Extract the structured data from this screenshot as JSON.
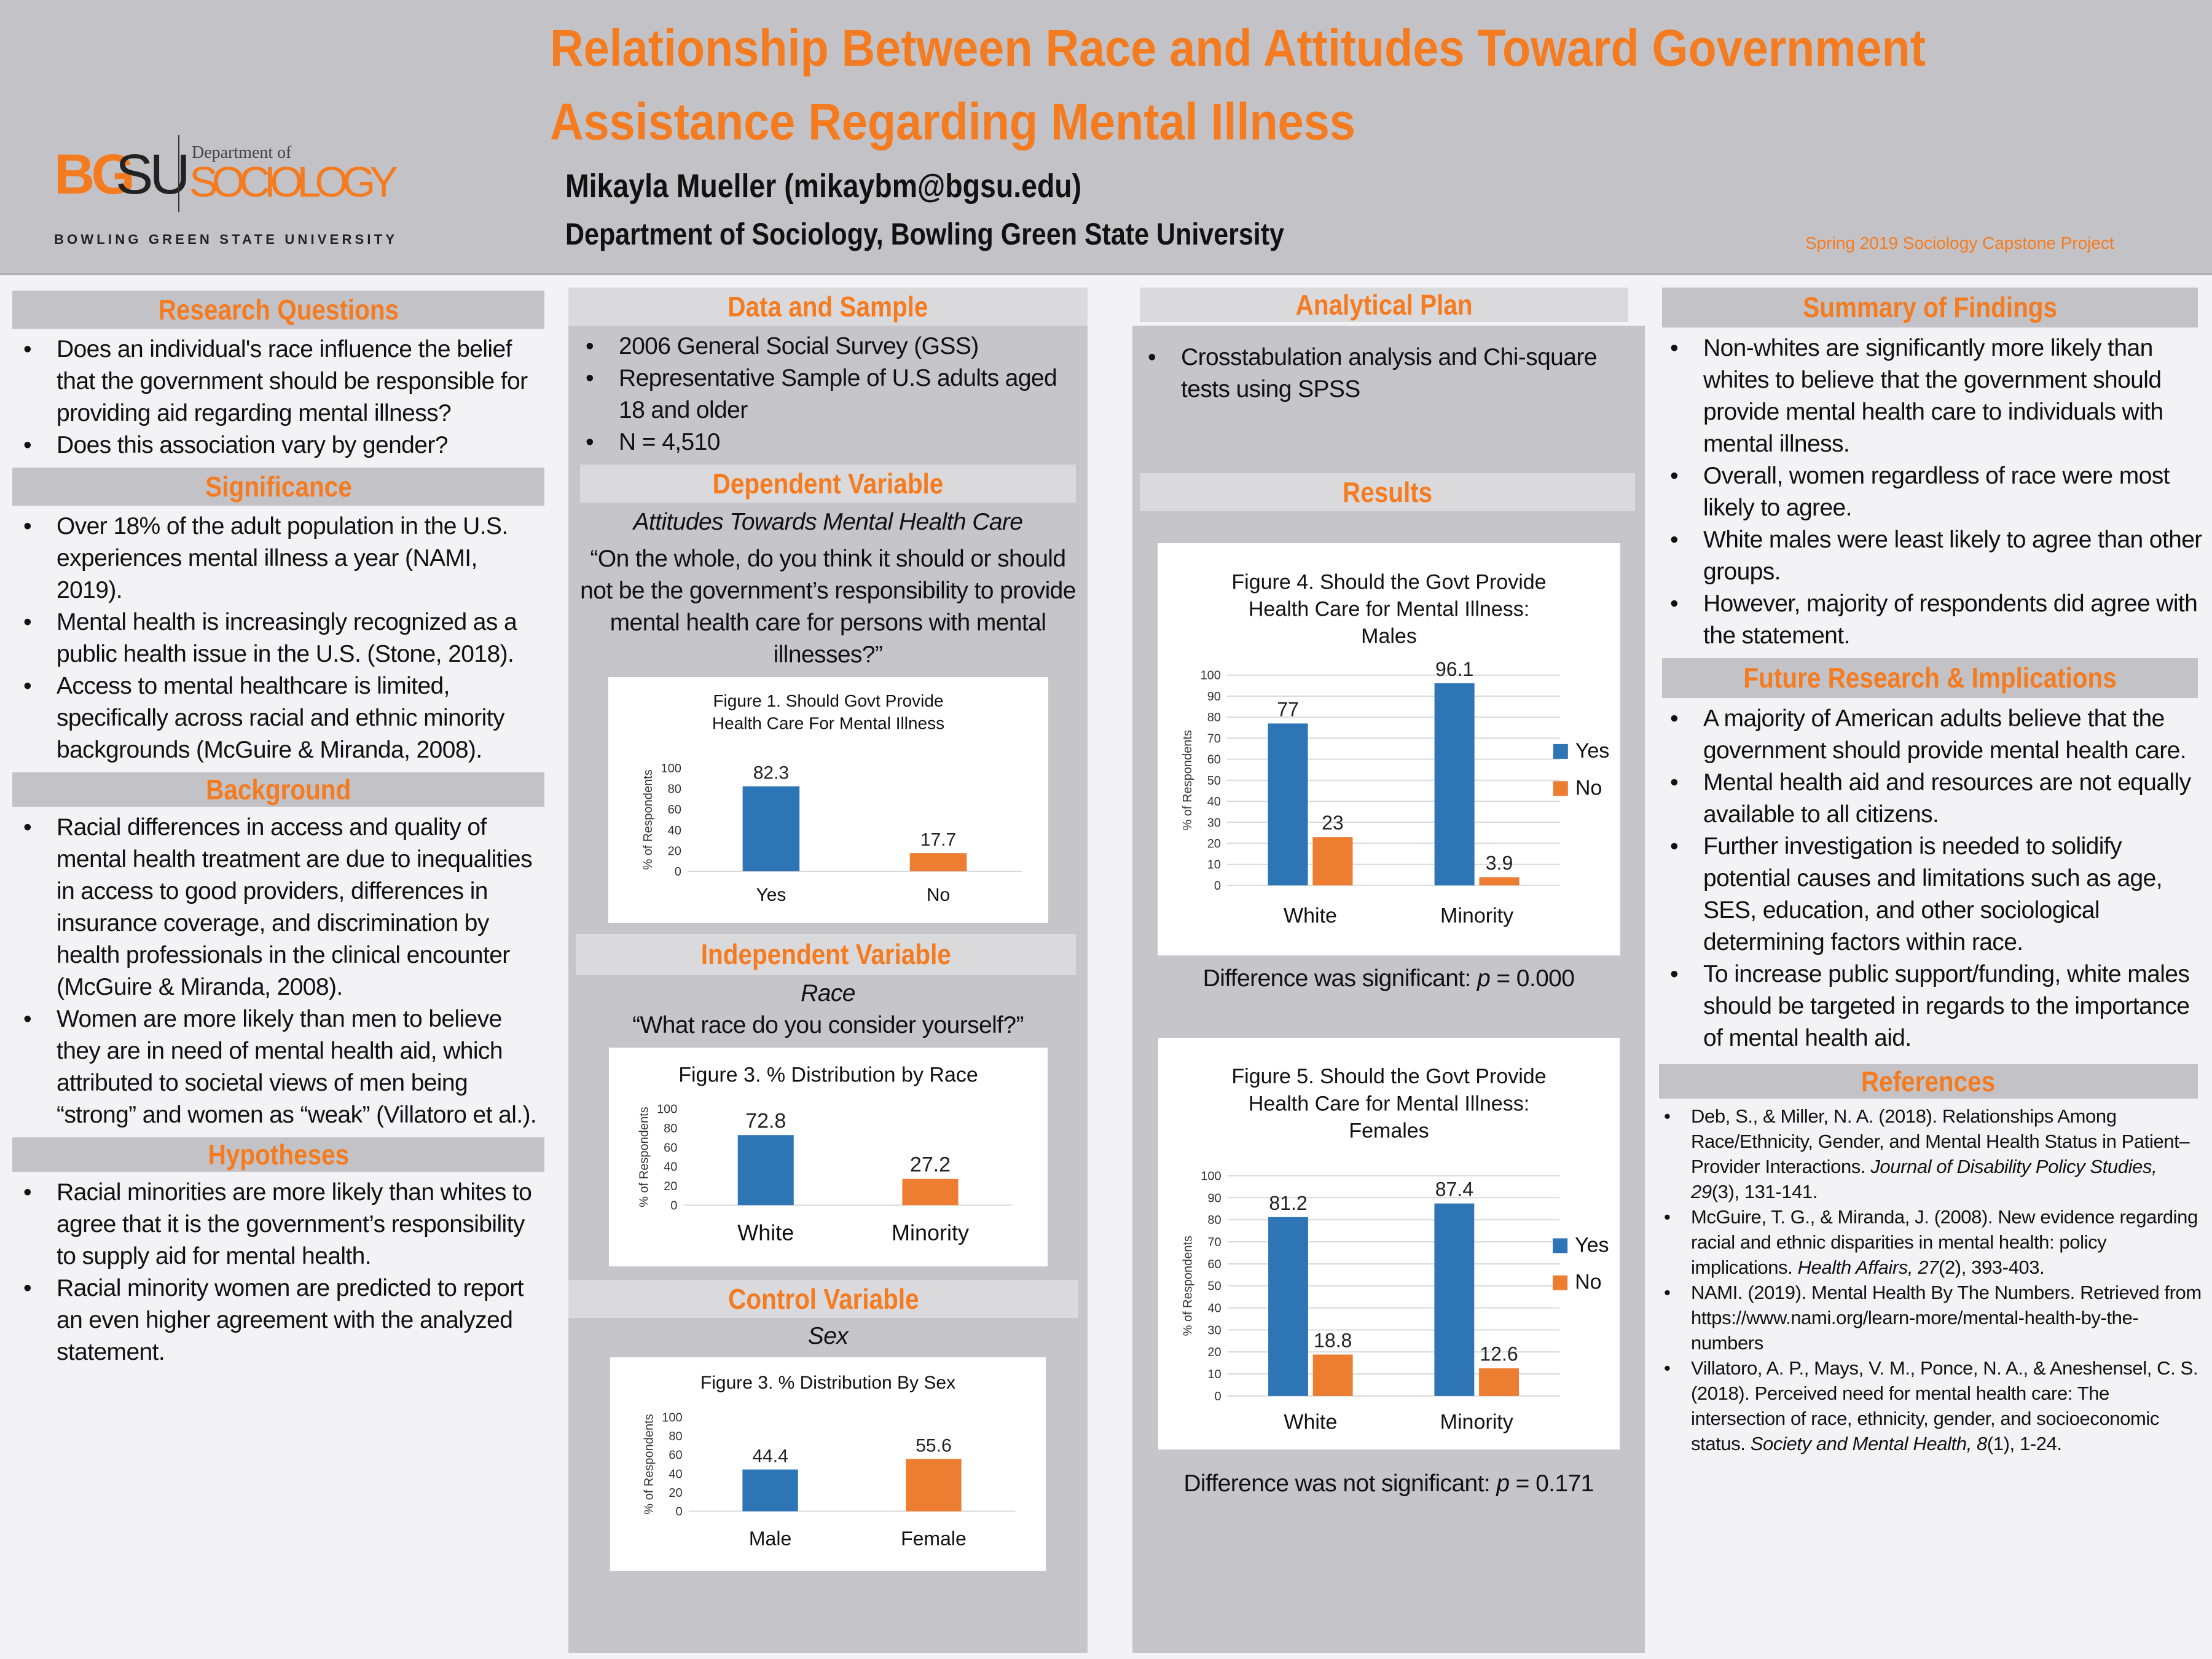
{
  "header": {
    "title_line1": "Relationship Between Race and Attitudes Toward Government",
    "title_line2": "Assistance  Regarding Mental Illness",
    "author": "Mikayla Mueller (mikaybm@bgsu.edu)",
    "department": "Department of Sociology, Bowling Green State University",
    "project": "Spring 2019 Sociology Capstone Project",
    "logo": {
      "bg": "BG",
      "su": "SU",
      "dept_of": "Department of",
      "sociology": "SOCIOLOGY",
      "university": "BOWLING GREEN STATE UNIVERSITY"
    }
  },
  "colors": {
    "orange": "#f47b20",
    "blue": "#2e75b6",
    "bar_orange": "#ed7d31",
    "panel": "#c6c6ca"
  },
  "research_questions": {
    "heading": "Research Questions",
    "items": [
      "Does an individual's race influence the belief that the government should be responsible for providing aid regarding mental illness?",
      "Does this association vary by gender?"
    ]
  },
  "significance": {
    "heading": "Significance",
    "items": [
      "Over 18% of the adult population in the U.S. experiences mental illness a year (NAMI, 2019).",
      "Mental health is increasingly recognized as a public health issue in the U.S. (Stone, 2018).",
      "Access to mental healthcare is limited, specifically across racial and ethnic minority backgrounds (McGuire & Miranda, 2008)."
    ]
  },
  "background": {
    "heading": "Background",
    "items": [
      "Racial differences in access and quality of mental health treatment are due to inequalities in access to good providers, differences in insurance coverage, and discrimination by health professionals in the clinical encounter (McGuire & Miranda, 2008).",
      "Women are more likely than men to believe they are in need of mental health aid, which attributed to societal views of men being “strong” and women as “weak” (Villatoro et al.)."
    ]
  },
  "hypotheses": {
    "heading": "Hypotheses",
    "items": [
      "Racial minorities are more likely than whites to agree that it is the government’s responsibility to supply aid for mental health.",
      "Racial minority women are predicted to report an even higher agreement with the analyzed statement."
    ]
  },
  "data_sample": {
    "heading": "Data and Sample",
    "items": [
      "2006 General Social Survey (GSS)",
      "Representative Sample of U.S adults aged 18 and older",
      "N = 4,510"
    ]
  },
  "dependent": {
    "heading": "Dependent Variable",
    "subtitle": "Attitudes Towards Mental Health Care",
    "question": "“On the whole, do you think it should or should not be the government’s responsibility to provide mental health care for persons with mental illnesses?”"
  },
  "independent": {
    "heading": "Independent Variable",
    "subtitle": "Race",
    "question": "“What race do you consider yourself?”"
  },
  "control": {
    "heading": "Control Variable",
    "subtitle": "Sex"
  },
  "analytical_plan": {
    "heading": "Analytical Plan",
    "items": [
      "Crosstabulation analysis and Chi-square tests using SPSS"
    ]
  },
  "results": {
    "heading": "Results",
    "fig4_note_prefix": "Difference was significant: ",
    "fig4_note_p": "p",
    "fig4_note_value": " = 0.000",
    "fig5_note_prefix": "Difference was not significant: ",
    "fig5_note_p": "p",
    "fig5_note_value": " = 0.171"
  },
  "summary": {
    "heading": "Summary of Findings",
    "items": [
      "Non-whites are significantly more likely than whites to believe that the government should provide mental health care to individuals with mental illness.",
      "Overall, women regardless of race were most likely to agree.",
      "White males were least likely to agree than other groups.",
      "However, majority of respondents did agree with the statement."
    ]
  },
  "future": {
    "heading": "Future Research & Implications",
    "items": [
      "A majority of American adults believe that the government should provide mental health care.",
      "Mental health aid and resources are not equally available to all citizens.",
      "Further investigation is needed to solidify potential causes and limitations such as age, SES, education, and other sociological determining factors within race.",
      "To increase public support/funding, white males should be targeted in regards to the importance of mental health aid."
    ]
  },
  "references": {
    "heading": "References",
    "items": [
      {
        "text": "Deb, S., & Miller, N. A. (2018). Relationships Among Race/Ethnicity, Gender, and Mental Health Status in Patient–Provider Interactions. ",
        "journal": "Journal of Disability Policy Studies, 29",
        "tail": "(3), 131-141."
      },
      {
        "text": "McGuire, T. G., & Miranda, J. (2008). New evidence regarding racial and ethnic disparities in mental health: policy implications. ",
        "journal": "Health Affairs, 27",
        "tail": "(2), 393-403."
      },
      {
        "text": "NAMI. (2019). Mental Health By The Numbers. Retrieved from https://www.nami.org/learn-more/mental-health-by-the-numbers",
        "journal": "",
        "tail": ""
      },
      {
        "text": "Villatoro, A. P., Mays, V. M., Ponce, N. A., & Aneshensel, C. S. (2018). Perceived need for mental health care: The intersection of race, ethnicity, gender, and socioeconomic status. ",
        "journal": "Society and Mental Health, 8",
        "tail": "(1), 1-24."
      }
    ]
  },
  "chart_data": [
    {
      "id": "fig1",
      "type": "bar",
      "title": [
        "Figure 1. Should Govt Provide",
        "Health Care For Mental Illness"
      ],
      "ylabel": "% of Respondents",
      "ylim": [
        0,
        100
      ],
      "yticks": [
        0,
        20,
        40,
        60,
        80,
        100
      ],
      "grid": false,
      "categories": [
        "Yes",
        "No"
      ],
      "values": [
        82.3,
        17.7
      ],
      "bar_colors": [
        "#2e75b6",
        "#ed7d31"
      ]
    },
    {
      "id": "fig3a",
      "type": "bar",
      "title": [
        "Figure 3. % Distribution by Race"
      ],
      "ylabel": "% of Respondents",
      "ylim": [
        0,
        100
      ],
      "yticks": [
        0,
        20,
        40,
        60,
        80,
        100
      ],
      "grid": false,
      "categories": [
        "White",
        "Minority"
      ],
      "values": [
        72.8,
        27.2
      ],
      "bar_colors": [
        "#2e75b6",
        "#ed7d31"
      ]
    },
    {
      "id": "fig3b",
      "type": "bar",
      "title": [
        "Figure 3. %  Distribution By Sex"
      ],
      "ylabel": "% of Respondents",
      "ylim": [
        0,
        100
      ],
      "yticks": [
        0,
        20,
        40,
        60,
        80,
        100
      ],
      "grid": false,
      "categories": [
        "Male",
        "Female"
      ],
      "values": [
        44.4,
        55.6
      ],
      "bar_colors": [
        "#2e75b6",
        "#ed7d31"
      ]
    },
    {
      "id": "fig4",
      "type": "bar",
      "title": [
        "Figure 4. Should the Govt Provide",
        "Health Care for Mental Illness:",
        "Males"
      ],
      "ylabel": "% of Respondents",
      "ylim": [
        0,
        100
      ],
      "yticks": [
        0,
        10,
        20,
        30,
        40,
        50,
        60,
        70,
        80,
        90,
        100
      ],
      "grid": true,
      "legend": "right",
      "categories": [
        "White",
        "Minority"
      ],
      "series": [
        {
          "name": "Yes",
          "values": [
            77,
            96.1
          ],
          "color": "#2e75b6"
        },
        {
          "name": "No",
          "values": [
            23,
            3.9
          ],
          "color": "#ed7d31"
        }
      ]
    },
    {
      "id": "fig5",
      "type": "bar",
      "title": [
        "Figure 5. Should the Govt Provide",
        "Health Care for Mental Illness:",
        "Females"
      ],
      "ylabel": "% of Respondents",
      "ylim": [
        0,
        100
      ],
      "yticks": [
        0,
        10,
        20,
        30,
        40,
        50,
        60,
        70,
        80,
        90,
        100
      ],
      "grid": true,
      "legend": "right",
      "categories": [
        "White",
        "Minority"
      ],
      "series": [
        {
          "name": "Yes",
          "values": [
            81.2,
            87.4
          ],
          "color": "#2e75b6"
        },
        {
          "name": "No",
          "values": [
            18.8,
            12.6
          ],
          "color": "#ed7d31"
        }
      ]
    }
  ]
}
